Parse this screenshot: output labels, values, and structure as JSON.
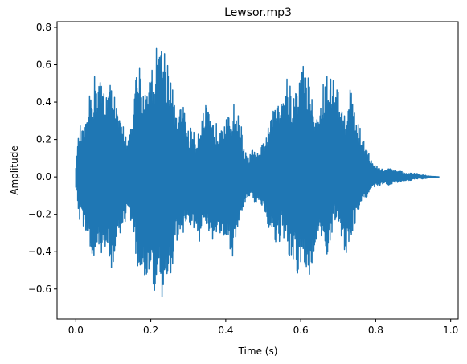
{
  "chart_data": {
    "type": "line",
    "title": "Lewsor.mp3",
    "xlabel": "Time (s)",
    "ylabel": "Amplitude",
    "xlim": [
      -0.05,
      1.02
    ],
    "ylim": [
      -0.76,
      0.83
    ],
    "x_ticks": [
      0.0,
      0.2,
      0.4,
      0.6,
      0.8,
      1.0
    ],
    "x_tick_labels": [
      "0.0",
      "0.2",
      "0.4",
      "0.6",
      "0.8",
      "1.0"
    ],
    "y_ticks": [
      -0.6,
      -0.4,
      -0.2,
      0.0,
      0.2,
      0.4,
      0.6,
      0.8
    ],
    "y_tick_labels": [
      "−0.6",
      "−0.4",
      "−0.2",
      "0.0",
      "0.2",
      "0.4",
      "0.6",
      "0.8"
    ],
    "grid": false,
    "legend": "none",
    "color": "#1f77b4",
    "series": [
      {
        "x": [
          0.0,
          0.01,
          0.02,
          0.03,
          0.04,
          0.05,
          0.06,
          0.07,
          0.08,
          0.09,
          0.1,
          0.11,
          0.12,
          0.13,
          0.14,
          0.15,
          0.16,
          0.17,
          0.18,
          0.19,
          0.2,
          0.21,
          0.22,
          0.23,
          0.24,
          0.25,
          0.26,
          0.27,
          0.28,
          0.29,
          0.3,
          0.31,
          0.32,
          0.33,
          0.34,
          0.35,
          0.36,
          0.37,
          0.38,
          0.39,
          0.4,
          0.41,
          0.42,
          0.43,
          0.44,
          0.45,
          0.46,
          0.47,
          0.48,
          0.49,
          0.5,
          0.51,
          0.52,
          0.53,
          0.54,
          0.55,
          0.56,
          0.57,
          0.58,
          0.59,
          0.6,
          0.61,
          0.62,
          0.63,
          0.64,
          0.65,
          0.66,
          0.67,
          0.68,
          0.69,
          0.7,
          0.71,
          0.72,
          0.73,
          0.74,
          0.75,
          0.76,
          0.77,
          0.78,
          0.79,
          0.8,
          0.81,
          0.82,
          0.83,
          0.84,
          0.85,
          0.86,
          0.87,
          0.88,
          0.89,
          0.9,
          0.91,
          0.92,
          0.93,
          0.94,
          0.95,
          0.96,
          0.97
        ],
        "y_max": [
          0.08,
          0.28,
          0.25,
          0.3,
          0.5,
          0.55,
          0.56,
          0.5,
          0.48,
          0.5,
          0.53,
          0.35,
          0.3,
          0.28,
          0.22,
          0.27,
          0.55,
          0.6,
          0.45,
          0.55,
          0.58,
          0.65,
          0.75,
          0.72,
          0.7,
          0.62,
          0.45,
          0.3,
          0.38,
          0.4,
          0.25,
          0.28,
          0.2,
          0.3,
          0.35,
          0.4,
          0.28,
          0.3,
          0.28,
          0.35,
          0.33,
          0.32,
          0.4,
          0.35,
          0.3,
          0.15,
          0.1,
          0.15,
          0.13,
          0.12,
          0.2,
          0.25,
          0.3,
          0.38,
          0.48,
          0.5,
          0.55,
          0.5,
          0.45,
          0.5,
          0.6,
          0.62,
          0.55,
          0.48,
          0.3,
          0.38,
          0.5,
          0.56,
          0.55,
          0.53,
          0.48,
          0.35,
          0.4,
          0.5,
          0.46,
          0.32,
          0.25,
          0.2,
          0.15,
          0.08,
          0.06,
          0.05,
          0.04,
          0.04,
          0.05,
          0.03,
          0.04,
          0.03,
          0.02,
          0.02,
          0.02,
          0.02,
          0.01,
          0.01,
          0.005,
          0.003,
          0.002,
          0.0
        ],
        "y_min": [
          -0.06,
          -0.25,
          -0.27,
          -0.3,
          -0.45,
          -0.5,
          -0.45,
          -0.4,
          -0.45,
          -0.48,
          -0.5,
          -0.35,
          -0.3,
          -0.25,
          -0.22,
          -0.25,
          -0.45,
          -0.55,
          -0.52,
          -0.55,
          -0.6,
          -0.62,
          -0.65,
          -0.7,
          -0.6,
          -0.55,
          -0.45,
          -0.35,
          -0.3,
          -0.3,
          -0.25,
          -0.28,
          -0.3,
          -0.35,
          -0.3,
          -0.28,
          -0.35,
          -0.4,
          -0.3,
          -0.35,
          -0.3,
          -0.38,
          -0.45,
          -0.3,
          -0.2,
          -0.15,
          -0.1,
          -0.12,
          -0.15,
          -0.12,
          -0.18,
          -0.25,
          -0.3,
          -0.35,
          -0.38,
          -0.32,
          -0.4,
          -0.45,
          -0.5,
          -0.55,
          -0.52,
          -0.48,
          -0.55,
          -0.5,
          -0.35,
          -0.3,
          -0.35,
          -0.45,
          -0.32,
          -0.25,
          -0.3,
          -0.35,
          -0.42,
          -0.38,
          -0.3,
          -0.2,
          -0.15,
          -0.12,
          -0.1,
          -0.06,
          -0.06,
          -0.05,
          -0.04,
          -0.05,
          -0.04,
          -0.03,
          -0.03,
          -0.02,
          -0.02,
          -0.02,
          -0.015,
          -0.01,
          -0.01,
          -0.01,
          -0.005,
          -0.003,
          -0.002,
          0.0
        ]
      }
    ]
  }
}
